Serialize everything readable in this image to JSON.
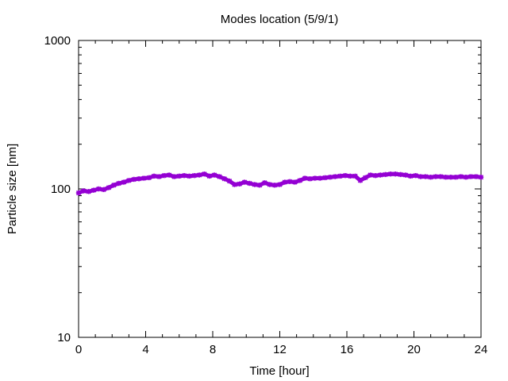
{
  "chart_data": {
    "type": "scatter",
    "title": "Modes location (5/9/1)",
    "xlabel": "Time [hour]",
    "ylabel": "Particle size [nm]",
    "xlim": [
      0,
      24
    ],
    "ylim": [
      10,
      1000
    ],
    "y_scale": "log",
    "x_ticks": [
      0,
      4,
      8,
      12,
      16,
      20,
      24
    ],
    "x_tick_labels": [
      "0",
      "4",
      "8",
      "12",
      "16",
      "20",
      "24"
    ],
    "y_ticks": [
      10,
      100,
      1000
    ],
    "y_tick_labels": [
      "10",
      "100",
      "1000"
    ],
    "grid": false,
    "legend": "none",
    "series": [
      {
        "color": "#9400d3",
        "marker": "plus-x",
        "points": [
          [
            0.0,
            94
          ],
          [
            0.3,
            97
          ],
          [
            0.6,
            96
          ],
          [
            0.9,
            98
          ],
          [
            1.2,
            100
          ],
          [
            1.5,
            99
          ],
          [
            1.8,
            102
          ],
          [
            2.1,
            106
          ],
          [
            2.4,
            109
          ],
          [
            2.7,
            111
          ],
          [
            3.0,
            114
          ],
          [
            3.3,
            116
          ],
          [
            3.6,
            117
          ],
          [
            3.9,
            118
          ],
          [
            4.2,
            119
          ],
          [
            4.5,
            122
          ],
          [
            4.8,
            121
          ],
          [
            5.1,
            123
          ],
          [
            5.4,
            124
          ],
          [
            5.7,
            121
          ],
          [
            6.0,
            122
          ],
          [
            6.3,
            123
          ],
          [
            6.6,
            122
          ],
          [
            6.9,
            123
          ],
          [
            7.2,
            124
          ],
          [
            7.5,
            126
          ],
          [
            7.8,
            122
          ],
          [
            8.1,
            124
          ],
          [
            8.4,
            121
          ],
          [
            8.7,
            117
          ],
          [
            9.0,
            113
          ],
          [
            9.3,
            107
          ],
          [
            9.6,
            108
          ],
          [
            9.9,
            111
          ],
          [
            10.2,
            109
          ],
          [
            10.5,
            107
          ],
          [
            10.8,
            106
          ],
          [
            11.1,
            110
          ],
          [
            11.4,
            107
          ],
          [
            11.7,
            106
          ],
          [
            12.0,
            107
          ],
          [
            12.3,
            111
          ],
          [
            12.6,
            112
          ],
          [
            12.9,
            111
          ],
          [
            13.2,
            114
          ],
          [
            13.5,
            118
          ],
          [
            13.8,
            117
          ],
          [
            14.1,
            118
          ],
          [
            14.4,
            118
          ],
          [
            14.7,
            119
          ],
          [
            15.0,
            120
          ],
          [
            15.3,
            121
          ],
          [
            15.6,
            122
          ],
          [
            15.9,
            123
          ],
          [
            16.2,
            122
          ],
          [
            16.5,
            122
          ],
          [
            16.8,
            114
          ],
          [
            17.1,
            119
          ],
          [
            17.4,
            124
          ],
          [
            17.7,
            123
          ],
          [
            18.0,
            124
          ],
          [
            18.3,
            125
          ],
          [
            18.6,
            126
          ],
          [
            18.9,
            126
          ],
          [
            19.2,
            125
          ],
          [
            19.5,
            124
          ],
          [
            19.8,
            122
          ],
          [
            20.1,
            123
          ],
          [
            20.4,
            121
          ],
          [
            20.7,
            121
          ],
          [
            21.0,
            120
          ],
          [
            21.3,
            121
          ],
          [
            21.6,
            121
          ],
          [
            21.9,
            120
          ],
          [
            22.2,
            120
          ],
          [
            22.5,
            120
          ],
          [
            22.8,
            121
          ],
          [
            23.1,
            120
          ],
          [
            23.4,
            121
          ],
          [
            23.7,
            121
          ],
          [
            24.0,
            120
          ]
        ]
      }
    ]
  }
}
